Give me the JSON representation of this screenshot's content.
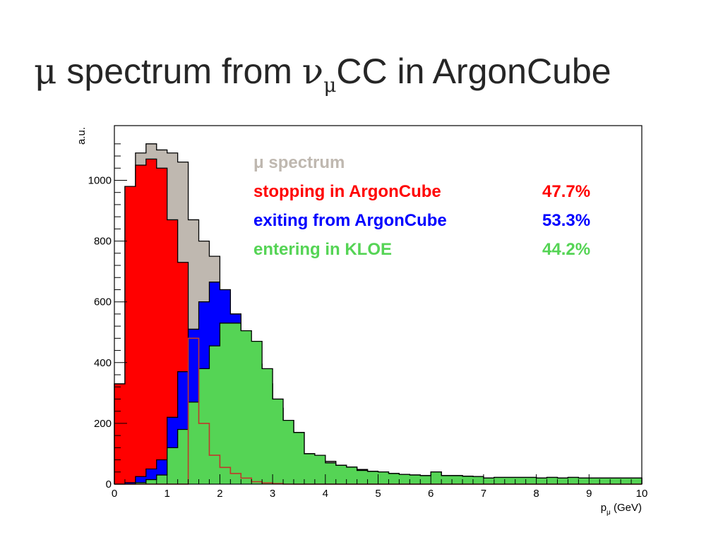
{
  "title": {
    "mu": "μ",
    "before": " spectrum from ",
    "nu": "ν",
    "nu_sub": "μ",
    "after": "CC in ArgonCube"
  },
  "colors": {
    "total": "#bfb8b0",
    "exiting": "#0000ff",
    "stopping": "#ff0000",
    "entering": "#55d455",
    "outline": "#000000",
    "entering_outline": "#000000",
    "red_line": "#c0392b"
  },
  "legend": [
    {
      "label": "μ spectrum",
      "value": "",
      "color": "#bfb8b0"
    },
    {
      "label": "stopping in ArgonCube",
      "value": "47.7%",
      "color": "#ff0000"
    },
    {
      "label": "exiting from ArgonCube",
      "value": "53.3%",
      "color": "#0000ff"
    },
    {
      "label": "entering in KLOE",
      "value": "44.2%",
      "color": "#55d455"
    }
  ],
  "chart_data": {
    "type": "area",
    "subtype": "stacked-step-histogram",
    "xlabel": "p_μ (GeV)",
    "xlabel_main": "p",
    "xlabel_sub": "μ",
    "xlabel_unit": " (GeV)",
    "ylabel": "a.u.",
    "xlim": [
      0,
      10
    ],
    "ylim": [
      0,
      1180
    ],
    "bin_width": 0.2,
    "xticks": [
      "0",
      "1",
      "2",
      "3",
      "4",
      "5",
      "6",
      "7",
      "8",
      "9",
      "10"
    ],
    "yticks": [
      "0",
      "200",
      "400",
      "600",
      "800",
      "1000"
    ],
    "xtick_values": [
      0,
      1,
      2,
      3,
      4,
      5,
      6,
      7,
      8,
      9,
      10
    ],
    "ytick_values": [
      0,
      200,
      400,
      600,
      800,
      1000
    ],
    "bin_edges": [
      0,
      0.2,
      0.4,
      0.6,
      0.8,
      1.0,
      1.2,
      1.4,
      1.6,
      1.8,
      2.0,
      2.2,
      2.4,
      2.6,
      2.8,
      3.0,
      3.2,
      3.4,
      3.6,
      3.8,
      4.0,
      4.2,
      4.4,
      4.6,
      4.8,
      5.0,
      5.2,
      5.4,
      5.6,
      5.8,
      6.0,
      6.2,
      6.4,
      6.6,
      6.8,
      7.0,
      7.2,
      7.4,
      7.6,
      7.8,
      8.0,
      8.2,
      8.4,
      8.6,
      8.8,
      9.0,
      9.2,
      9.4,
      9.6,
      9.8,
      10.0
    ],
    "series": [
      {
        "name": "μ spectrum",
        "values": [
          330,
          980,
          1090,
          1120,
          1100,
          1090,
          1060,
          870,
          800,
          750,
          640,
          560,
          430,
          395,
          330,
          250,
          210,
          170,
          100,
          95,
          75,
          62,
          56,
          48,
          42,
          40,
          35,
          32,
          30,
          28,
          40,
          28,
          28,
          26,
          25,
          20,
          22,
          22,
          22,
          22,
          20,
          22,
          20,
          22,
          20,
          20,
          20,
          20,
          20,
          20
        ]
      },
      {
        "name": "stopping in ArgonCube",
        "values": [
          330,
          980,
          1050,
          1070,
          1040,
          870,
          730,
          400,
          170,
          75,
          35,
          15,
          8,
          5,
          3,
          2,
          1,
          0,
          0,
          0,
          0,
          0,
          0,
          0,
          0,
          0,
          0,
          0,
          0,
          0,
          0,
          0,
          0,
          0,
          0,
          0,
          0,
          0,
          0,
          0,
          0,
          0,
          0,
          0,
          0,
          0,
          0,
          0,
          0,
          0
        ]
      },
      {
        "name": "exiting from ArgonCube",
        "values": [
          0,
          5,
          25,
          50,
          80,
          220,
          370,
          510,
          600,
          665,
          640,
          560,
          430,
          395,
          330,
          250,
          210,
          170,
          100,
          95,
          70,
          62,
          56,
          48,
          42,
          40,
          35,
          32,
          30,
          28,
          40,
          28,
          28,
          26,
          25,
          20,
          22,
          22,
          22,
          22,
          20,
          22,
          20,
          22,
          20,
          20,
          20,
          20,
          20,
          20
        ]
      },
      {
        "name": "entering in KLOE",
        "values": [
          0,
          0,
          5,
          15,
          30,
          120,
          180,
          270,
          380,
          455,
          530,
          530,
          505,
          470,
          380,
          280,
          210,
          170,
          100,
          95,
          70,
          62,
          56,
          45,
          42,
          40,
          35,
          32,
          30,
          28,
          40,
          28,
          28,
          26,
          25,
          20,
          22,
          22,
          22,
          22,
          20,
          22,
          20,
          22,
          20,
          20,
          20,
          20,
          20,
          20
        ]
      },
      {
        "name": "",
        "values": [
          0,
          0,
          0,
          0,
          0,
          0,
          0,
          480,
          200,
          95,
          55,
          35,
          20,
          8,
          4,
          2,
          0,
          0,
          0,
          0,
          0,
          0,
          0,
          0,
          0,
          0,
          0,
          0,
          0,
          0,
          0,
          0,
          0,
          0,
          0,
          0,
          0,
          0,
          0,
          0,
          0,
          0,
          0,
          0,
          0,
          0,
          0,
          0,
          0,
          0
        ]
      }
    ]
  }
}
